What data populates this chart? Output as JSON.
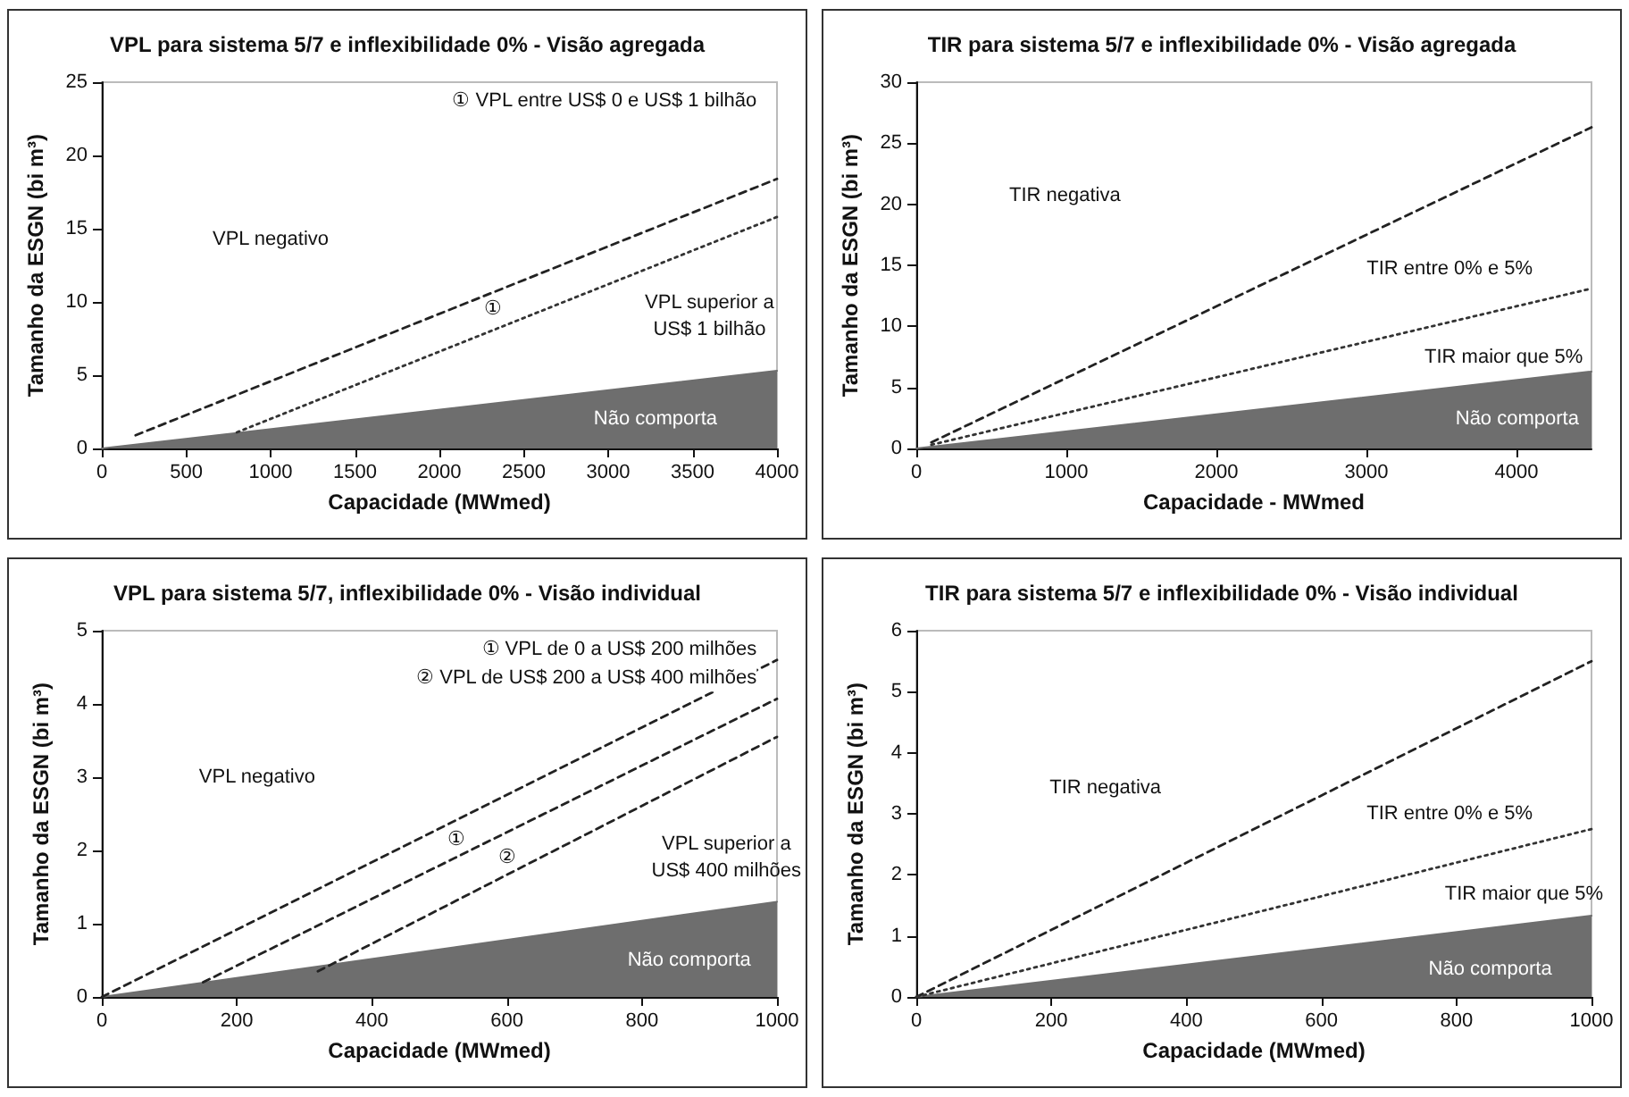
{
  "chart_data": [
    {
      "type": "line",
      "title": "VPL para sistema 5/7 e inflexibilidade 0% - Visão agregada",
      "xlabel": "Capacidade (MWmed)",
      "ylabel": "Tamanho da ESGN (bi m³)",
      "xlim": [
        0,
        4000
      ],
      "xticks": [
        0,
        500,
        1000,
        1500,
        2000,
        2500,
        3000,
        3500,
        4000
      ],
      "ylim": [
        0,
        25
      ],
      "yticks": [
        0,
        5,
        10,
        15,
        20,
        25
      ],
      "marker": "none",
      "series": [
        {
          "color": "#222222",
          "line_style": "dashed",
          "x": [
            200,
            4000
          ],
          "values": [
            0.9,
            18.4
          ]
        },
        {
          "color": "#333333",
          "line_style": "dotted",
          "x": [
            800,
            4000
          ],
          "values": [
            1.1,
            15.8
          ]
        },
        {
          "type": "area",
          "color": "#6e6e6e",
          "line_style": "solid",
          "x": [
            0,
            4000
          ],
          "values": [
            0,
            5.3
          ]
        }
      ],
      "annotations": [
        "① VPL entre US$ 0 e US$ 1 bilhão",
        "VPL negativo",
        "①",
        "VPL superior a\nUS$ 1 bilhão",
        "Não comporta"
      ]
    },
    {
      "type": "line",
      "title": "TIR para sistema 5/7 e inflexibilidade 0% - Visão agregada",
      "xlabel": "Capacidade - MWmed",
      "ylabel": "Tamanho da ESGN (bi m³)",
      "xlim": [
        0,
        4500
      ],
      "xticks": [
        0,
        1000,
        2000,
        3000,
        4000
      ],
      "ylim": [
        0,
        30
      ],
      "yticks": [
        0,
        5,
        10,
        15,
        20,
        25,
        30
      ],
      "marker": "none",
      "series": [
        {
          "color": "#222222",
          "line_style": "dashed",
          "x": [
            100,
            4500
          ],
          "values": [
            0.5,
            26.3
          ]
        },
        {
          "color": "#333333",
          "line_style": "dotted",
          "x": [
            100,
            4500
          ],
          "values": [
            0.3,
            13.1
          ]
        },
        {
          "type": "area",
          "color": "#6e6e6e",
          "line_style": "solid",
          "x": [
            0,
            4500
          ],
          "values": [
            0,
            6.3
          ]
        }
      ],
      "annotations": [
        "TIR negativa",
        "TIR entre 0% e 5%",
        "TIR maior que 5%",
        "Não comporta"
      ]
    },
    {
      "type": "line",
      "title": "VPL para sistema 5/7, inflexibilidade 0% - Visão individual",
      "xlabel": "Capacidade (MWmed)",
      "ylabel": "Tamanho da ESGN (bi m³)",
      "xlim": [
        0,
        1000
      ],
      "xticks": [
        0,
        200,
        400,
        600,
        800,
        1000
      ],
      "ylim": [
        0,
        5
      ],
      "yticks": [
        0,
        1,
        2,
        3,
        4,
        5
      ],
      "marker": "none",
      "series": [
        {
          "color": "#222222",
          "line_style": "dashed",
          "x": [
            0,
            1000
          ],
          "values": [
            0,
            4.6
          ]
        },
        {
          "color": "#222222",
          "line_style": "dashed",
          "x": [
            150,
            1000
          ],
          "values": [
            0.2,
            4.07
          ]
        },
        {
          "color": "#222222",
          "line_style": "dashed",
          "x": [
            320,
            1000
          ],
          "values": [
            0.35,
            3.55
          ]
        },
        {
          "type": "area",
          "color": "#6e6e6e",
          "line_style": "solid",
          "x": [
            0,
            1000
          ],
          "values": [
            0,
            1.3
          ]
        }
      ],
      "annotations": [
        "① VPL de 0 a US$ 200 milhões",
        "② VPL de US$ 200 a US$ 400 milhões",
        "VPL negativo",
        "①",
        "②",
        "VPL superior a\nUS$ 400 milhões",
        "Não comporta"
      ]
    },
    {
      "type": "line",
      "title": "TIR para sistema 5/7 e inflexibilidade 0% - Visão individual",
      "xlabel": "Capacidade (MWmed)",
      "ylabel": "Tamanho da ESGN (bi m³)",
      "xlim": [
        0,
        1000
      ],
      "xticks": [
        0,
        200,
        400,
        600,
        800,
        1000
      ],
      "ylim": [
        0,
        6
      ],
      "yticks": [
        0,
        1,
        2,
        3,
        4,
        5,
        6
      ],
      "marker": "none",
      "series": [
        {
          "color": "#222222",
          "line_style": "dashed",
          "x": [
            0,
            1000
          ],
          "values": [
            0,
            5.5
          ]
        },
        {
          "color": "#333333",
          "line_style": "dotted",
          "x": [
            0,
            1000
          ],
          "values": [
            0,
            2.75
          ]
        },
        {
          "type": "area",
          "color": "#6e6e6e",
          "line_style": "solid",
          "x": [
            0,
            1000
          ],
          "values": [
            0,
            1.33
          ]
        }
      ],
      "annotations": [
        "TIR negativa",
        "TIR entre 0% e 5%",
        "TIR maior que 5%",
        "Não comporta"
      ]
    }
  ]
}
